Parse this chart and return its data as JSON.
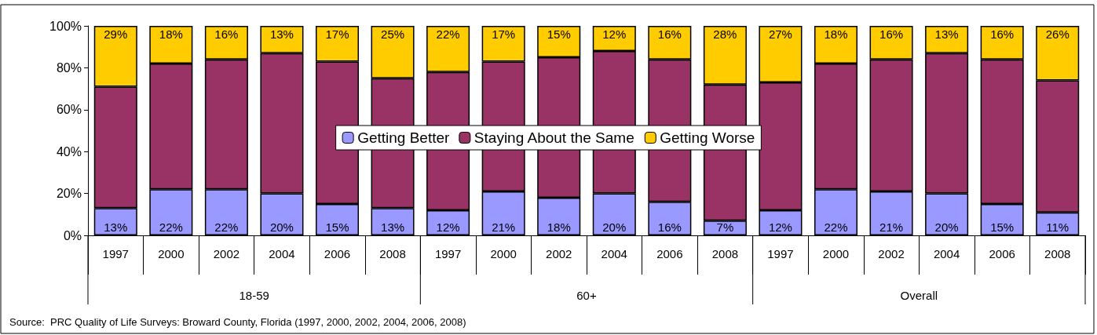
{
  "chart_data": {
    "type": "bar",
    "stacked": true,
    "categories": [
      "1997",
      "2000",
      "2002",
      "2004",
      "2006",
      "2008",
      "1997",
      "2000",
      "2002",
      "2004",
      "2006",
      "2008",
      "1997",
      "2000",
      "2002",
      "2004",
      "2006",
      "2008"
    ],
    "series": [
      {
        "name": "Getting Better",
        "color": "#9999ff",
        "values": [
          13,
          22,
          22,
          20,
          15,
          13,
          12,
          21,
          18,
          20,
          16,
          7,
          12,
          22,
          21,
          20,
          15,
          11
        ],
        "value_labels": [
          "13%",
          "22%",
          "22%",
          "20%",
          "15%",
          "13%",
          "12%",
          "21%",
          "18%",
          "20%",
          "16%",
          "7%",
          "12%",
          "22%",
          "21%",
          "20%",
          "15%",
          "11%"
        ]
      },
      {
        "name": "Staying About the Same",
        "color": "#993366",
        "values": [
          58,
          60,
          62,
          67,
          68,
          62,
          66,
          62,
          67,
          68,
          68,
          65,
          61,
          60,
          63,
          67,
          69,
          63
        ]
      },
      {
        "name": "Getting Worse",
        "color": "#ffcc00",
        "values": [
          29,
          18,
          16,
          13,
          17,
          25,
          22,
          17,
          15,
          12,
          16,
          28,
          27,
          18,
          16,
          13,
          16,
          26
        ],
        "value_labels": [
          "29%",
          "18%",
          "16%",
          "13%",
          "17%",
          "25%",
          "22%",
          "17%",
          "15%",
          "12%",
          "16%",
          "28%",
          "27%",
          "18%",
          "16%",
          "13%",
          "16%",
          "26%"
        ]
      }
    ],
    "ylim": [
      0,
      100
    ],
    "yticks": [
      {
        "value": 0,
        "label": "0%"
      },
      {
        "value": 20,
        "label": "20%"
      },
      {
        "value": 40,
        "label": "40%"
      },
      {
        "value": 60,
        "label": "60%"
      },
      {
        "value": 80,
        "label": "80%"
      },
      {
        "value": 100,
        "label": "100%"
      }
    ],
    "grid": false,
    "legend": "center",
    "annotations": [
      "18-59",
      "60+",
      "Overall",
      "Source:  PRC Quality of Life Surveys: Broward County, Florida (1997, 2000, 2002, 2004, 2006, 2008)"
    ]
  }
}
